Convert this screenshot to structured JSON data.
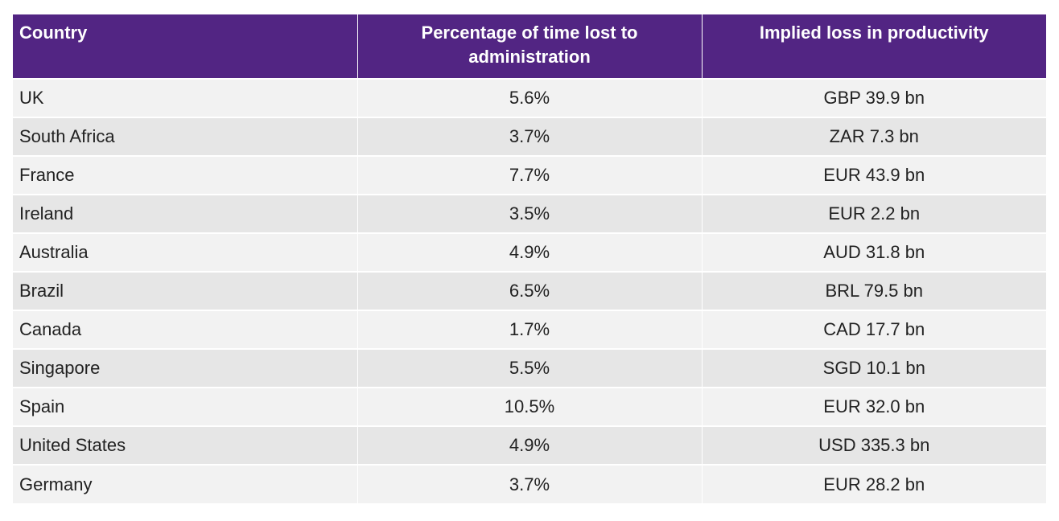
{
  "colors": {
    "header_bg": "#522583",
    "header_text": "#ffffff",
    "row_light": "#f2f2f2",
    "row_dark": "#e6e6e6",
    "body_text": "#222222"
  },
  "table": {
    "headers": [
      "Country",
      "Percentage of time lost to administration",
      "Implied loss in productivity"
    ],
    "rows": [
      [
        "UK",
        "5.6%",
        "GBP 39.9 bn"
      ],
      [
        "South Africa",
        "3.7%",
        "ZAR 7.3 bn"
      ],
      [
        "France",
        "7.7%",
        "EUR 43.9 bn"
      ],
      [
        "Ireland",
        "3.5%",
        "EUR 2.2 bn"
      ],
      [
        "Australia",
        "4.9%",
        "AUD 31.8 bn"
      ],
      [
        "Brazil",
        "6.5%",
        "BRL 79.5 bn"
      ],
      [
        "Canada",
        "1.7%",
        "CAD 17.7 bn"
      ],
      [
        "Singapore",
        "5.5%",
        "SGD 10.1 bn"
      ],
      [
        "Spain",
        "10.5%",
        "EUR 32.0 bn"
      ],
      [
        "United States",
        "4.9%",
        "USD 335.3 bn"
      ],
      [
        "Germany",
        "3.7%",
        "EUR 28.2 bn"
      ]
    ]
  }
}
